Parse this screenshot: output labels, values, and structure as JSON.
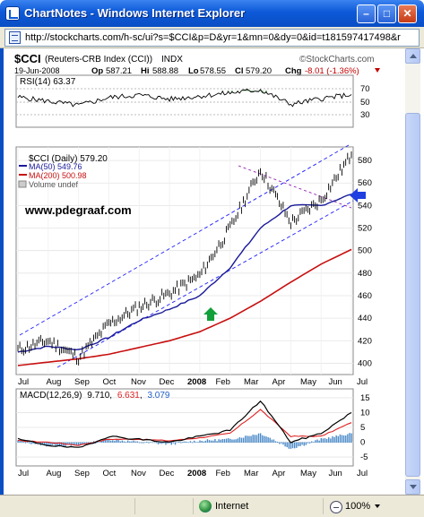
{
  "window": {
    "title": "ChartNotes - Windows Internet Explorer",
    "url": "http://stockcharts.com/h-sc/ui?s=$CCI&p=D&yr=1&mn=0&dy=0&id=t181597417498&r"
  },
  "status": {
    "zone": "Internet",
    "zoom": "100%"
  },
  "header": {
    "symbol": "$CCI",
    "name": "(Reuters-CRB Index (CCI))",
    "exchange": "INDX",
    "brand": "©StockCharts.com",
    "date": "19-Jun-2008",
    "op_label": "Op",
    "op": "587.21",
    "hi_label": "Hi",
    "hi": "588.88",
    "lo_label": "Lo",
    "lo": "578.55",
    "cl_label": "Cl",
    "cl": "579.20",
    "chg_label": "Chg",
    "chg": "-8.01 (-1.36%)"
  },
  "legend": {
    "price": "$CCI (Daily) 579.20",
    "ma50": "MA(50) 549.76",
    "ma200": "MA(200) 500.98",
    "volume": "Volume undef",
    "watermark": "www.pdegraaf.com"
  },
  "rsi": {
    "label": "RSI(14) 63.37",
    "levels": [
      "70",
      "50",
      "30"
    ]
  },
  "macd": {
    "label": "MACD(12,26,9)",
    "v1": "9.710",
    "v2": "6.631",
    "v3": "3.079",
    "levels": [
      "15",
      "10",
      "5",
      "0",
      "-5"
    ]
  },
  "price_axis": [
    "580",
    "560",
    "540",
    "520",
    "500",
    "480",
    "460",
    "440",
    "420",
    "400"
  ],
  "months": [
    "Jul",
    "Aug",
    "Sep",
    "Oct",
    "Nov",
    "Dec",
    "2008",
    "Feb",
    "Mar",
    "Apr",
    "May",
    "Jun",
    "Jul"
  ],
  "colors": {
    "price": "#000000",
    "ma50": "#1a1a9a",
    "ma200": "#c81010",
    "channel": "#2020ff",
    "rsi_fill": "#2e7d32",
    "arrow_green": "#12a03a",
    "arrow_blue": "#1f3fe0",
    "macd_hist": "#4a8ac8",
    "macd_signal": "#e02020"
  },
  "chart_data": {
    "type": "line",
    "title": "$CCI (Reuters-CRB Index (CCI))",
    "x": [
      "Jul-07",
      "Aug-07",
      "Sep-07",
      "Oct-07",
      "Nov-07",
      "Dec-07",
      "Jan-08",
      "Feb-08",
      "Mar-08",
      "Apr-08",
      "May-08",
      "Jun-08"
    ],
    "ylim": [
      390,
      592
    ],
    "series": [
      {
        "name": "$CCI (Daily)",
        "values": [
          412,
          420,
          405,
          435,
          450,
          462,
          478,
          520,
          572,
          525,
          545,
          585
        ]
      },
      {
        "name": "MA(50)",
        "values": [
          410,
          415,
          412,
          423,
          438,
          448,
          460,
          485,
          520,
          540,
          540,
          550
        ]
      },
      {
        "name": "MA(200)",
        "values": [
          398,
          401,
          404,
          408,
          414,
          420,
          428,
          440,
          455,
          472,
          488,
          501
        ]
      }
    ],
    "rsi": [
      58,
      50,
      42,
      57,
      62,
      54,
      60,
      66,
      72,
      44,
      55,
      63
    ],
    "macd": [
      1,
      -1,
      -2,
      2,
      1,
      0,
      2,
      4,
      14,
      0,
      3,
      10
    ],
    "macd_signal": [
      0.5,
      0,
      -1,
      1,
      1,
      0.5,
      1.5,
      3,
      11,
      2,
      2,
      6.6
    ],
    "macd_histogram": [
      0.5,
      -1,
      -1,
      1,
      0,
      -0.5,
      0.5,
      1,
      3,
      -2,
      1,
      3
    ]
  }
}
